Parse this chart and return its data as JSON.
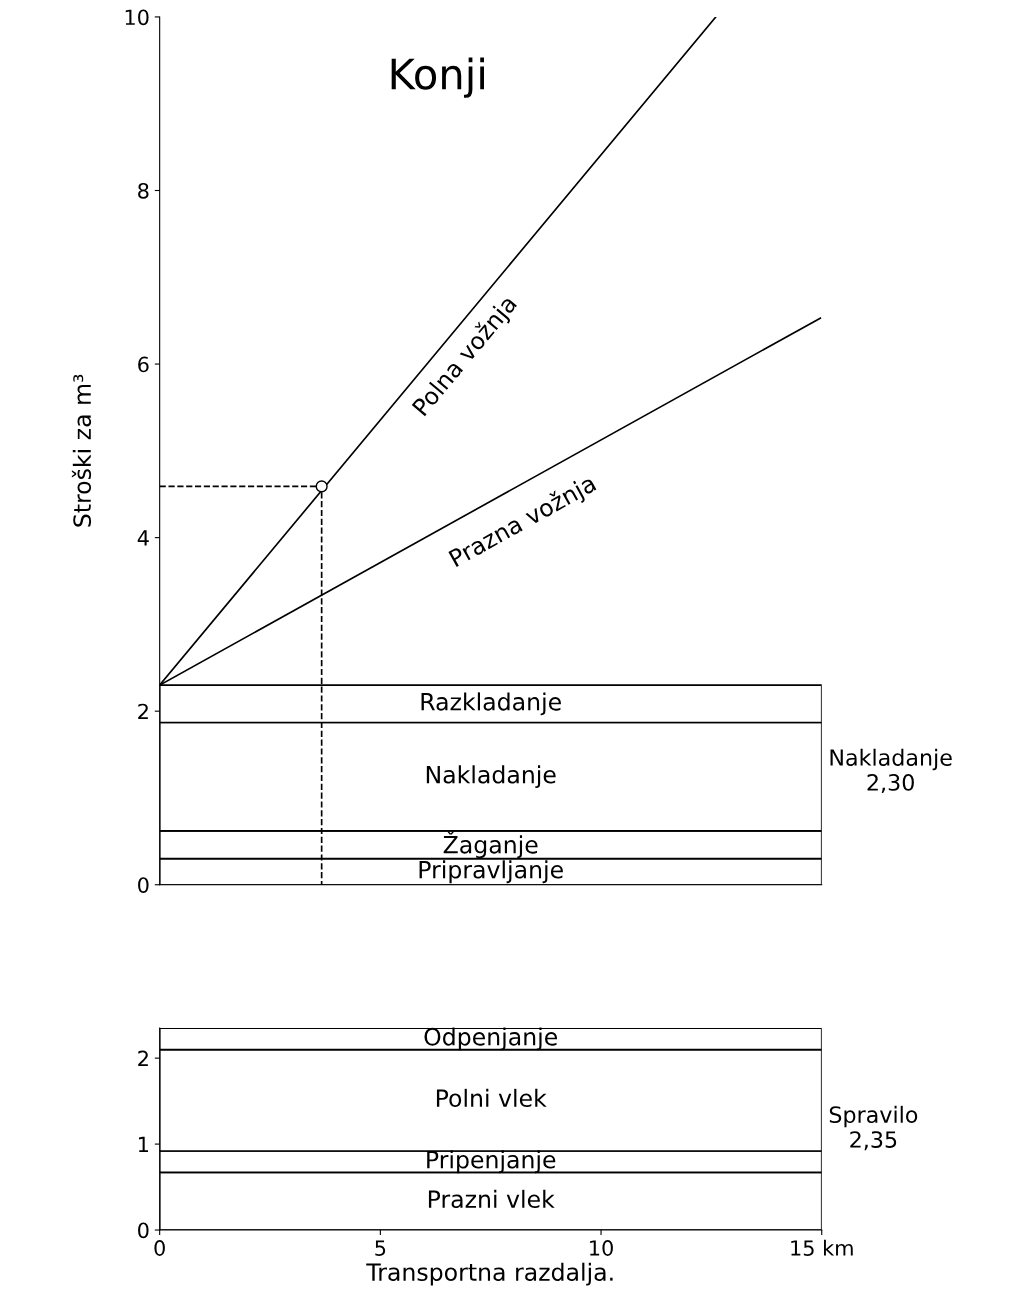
{
  "chart_data": [
    {
      "type": "line",
      "title": "Konji",
      "ylabel": "Stroški za m³",
      "xlim": [
        0,
        15
      ],
      "ylim": [
        0,
        10
      ],
      "yticks": [
        0,
        2,
        4,
        6,
        8,
        10
      ],
      "tick_labels": "y",
      "grid": false,
      "legend": false,
      "series": [
        {
          "name": "Polna vožnja",
          "color": "#000000",
          "x": [
            0,
            12.6
          ],
          "values": [
            2.3,
            10
          ]
        },
        {
          "name": "Prazna vožnja",
          "color": "#000000",
          "x": [
            0,
            14.97
          ],
          "values": [
            2.3,
            6.53
          ]
        },
        {
          "type": "line",
          "color": "#000000",
          "x": [
            0,
            3.67,
            3.67
          ],
          "values": [
            4.59,
            4.59,
            0
          ],
          "line_style": "dashed"
        },
        {
          "type": "scatter",
          "color": "#000000",
          "x": [
            3.67
          ],
          "values": [
            4.59
          ],
          "marker": "circle"
        }
      ],
      "bands": [
        {
          "axis": "y",
          "from": 0,
          "to": 0.3,
          "label": "Pripravljanje"
        },
        {
          "axis": "y",
          "from": 0.3,
          "to": 0.62,
          "label": "Žaganje"
        },
        {
          "axis": "y",
          "from": 0.62,
          "to": 1.87,
          "label": "Nakladanje"
        },
        {
          "axis": "y",
          "from": 1.87,
          "to": 2.3,
          "label": "Razkladanje"
        }
      ],
      "annotations": [
        "Nakladanje\n2,30"
      ]
    },
    {
      "type": "line",
      "xlabel": "Transportna razdalja.",
      "xlim": [
        0,
        15
      ],
      "ylim": [
        0,
        2.35
      ],
      "xticks": [
        0,
        5,
        10,
        {
          "value": 15,
          "label": "15 km"
        }
      ],
      "yticks": [
        0,
        1,
        2
      ],
      "grid": false,
      "legend": false,
      "bands": [
        {
          "axis": "y",
          "from": 0,
          "to": 0.67,
          "label": "Prazni vlek"
        },
        {
          "axis": "y",
          "from": 0.67,
          "to": 0.92,
          "label": "Pripenjanje"
        },
        {
          "axis": "y",
          "from": 0.92,
          "to": 2.1,
          "label": "Polni vlek"
        },
        {
          "axis": "y",
          "from": 2.1,
          "to": 2.35,
          "label": "Odpenjanje"
        }
      ],
      "annotations": [
        "Spravilo\n2,35"
      ]
    }
  ]
}
